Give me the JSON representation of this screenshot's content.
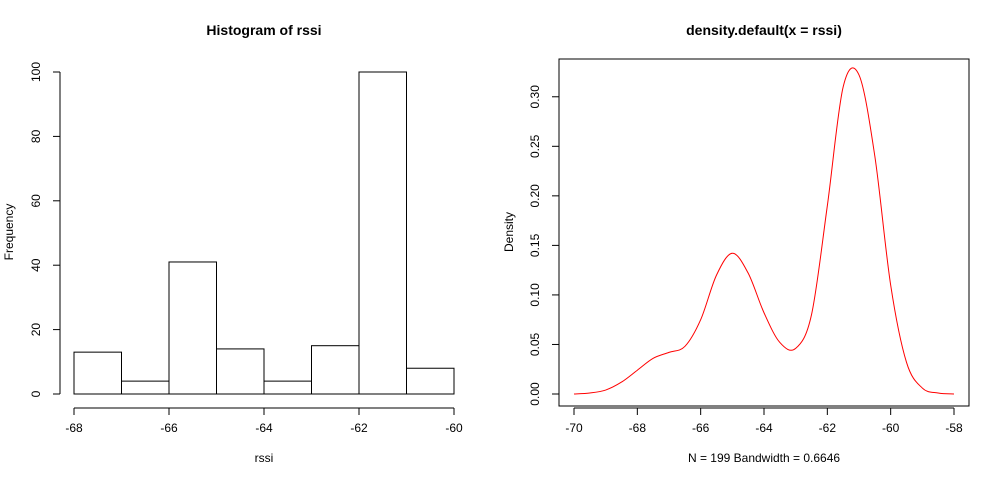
{
  "chart_data": [
    {
      "type": "bar",
      "title": "Histogram of rssi",
      "xlabel": "rssi",
      "ylabel": "Frequency",
      "bin_edges": [
        -68,
        -67,
        -66,
        -65,
        -64,
        -63,
        -62,
        -61,
        -60
      ],
      "values": [
        13,
        4,
        41,
        14,
        4,
        15,
        100,
        8
      ],
      "xlim": [
        -68,
        -60
      ],
      "ylim": [
        0,
        100
      ],
      "xticks": [
        -68,
        -66,
        -64,
        -62,
        -60
      ],
      "yticks": [
        0,
        20,
        40,
        60,
        80,
        100
      ],
      "bar_fill": "#ffffff",
      "bar_stroke": "#000000"
    },
    {
      "type": "line",
      "title": "density.default(x = rssi)",
      "xlabel": "N = 199   Bandwidth = 0.6646",
      "ylabel": "Density",
      "series": [
        {
          "color": "#ff0000",
          "x": [
            -70,
            -69.5,
            -69,
            -68.5,
            -68,
            -67.5,
            -67,
            -66.5,
            -66,
            -65.5,
            -65,
            -64.5,
            -64,
            -63.5,
            -63,
            -62.5,
            -62,
            -61.5,
            -61,
            -60.5,
            -60,
            -59.5,
            -59,
            -58.5,
            -58
          ],
          "y": [
            0.0,
            0.001,
            0.004,
            0.012,
            0.024,
            0.036,
            0.042,
            0.048,
            0.075,
            0.12,
            0.142,
            0.122,
            0.082,
            0.052,
            0.046,
            0.08,
            0.19,
            0.31,
            0.322,
            0.24,
            0.11,
            0.032,
            0.006,
            0.001,
            0.0
          ]
        }
      ],
      "xlim": [
        -70,
        -58
      ],
      "ylim": [
        0,
        0.325
      ],
      "xticks": [
        -70,
        -68,
        -66,
        -64,
        -62,
        -60,
        -58
      ],
      "yticks": [
        "0.00",
        "0.05",
        "0.10",
        "0.15",
        "0.20",
        "0.25",
        "0.30"
      ]
    }
  ]
}
